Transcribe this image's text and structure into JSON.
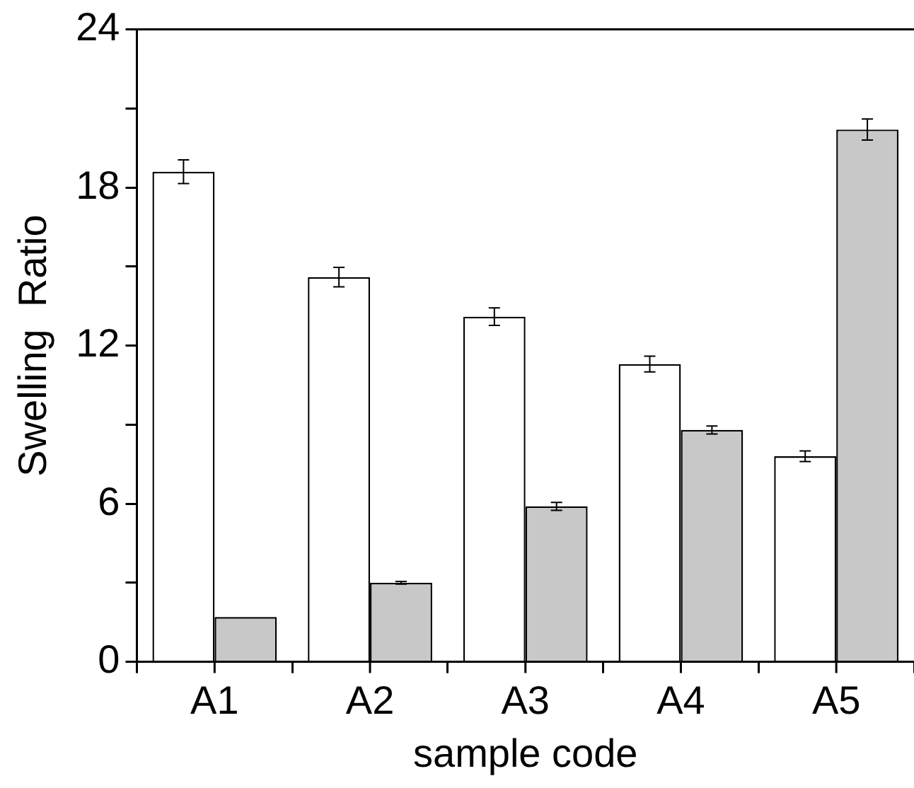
{
  "chart_data": {
    "type": "bar",
    "xlabel": "sample code",
    "ylabel": "Swelling  Ratio",
    "categories": [
      "A1",
      "A2",
      "A3",
      "A4",
      "A5"
    ],
    "series": [
      {
        "color": "#ffffff",
        "values": [
          18.6,
          14.6,
          13.1,
          11.3,
          7.8
        ],
        "errors": [
          0.45,
          0.37,
          0.33,
          0.3,
          0.2
        ]
      },
      {
        "color": "#c8c8c8",
        "values": [
          1.7,
          3.0,
          5.9,
          8.8,
          20.2
        ],
        "errors": [
          null,
          0.05,
          0.15,
          0.15,
          0.4
        ]
      }
    ],
    "ylim": [
      0,
      24
    ],
    "yticks": [
      0,
      {
        "value": 3,
        "label": null
      },
      6,
      {
        "value": 9,
        "label": null
      },
      12,
      {
        "value": 15,
        "label": null
      },
      18,
      {
        "value": 21,
        "label": null
      },
      24
    ],
    "grid": false,
    "legend": false
  }
}
